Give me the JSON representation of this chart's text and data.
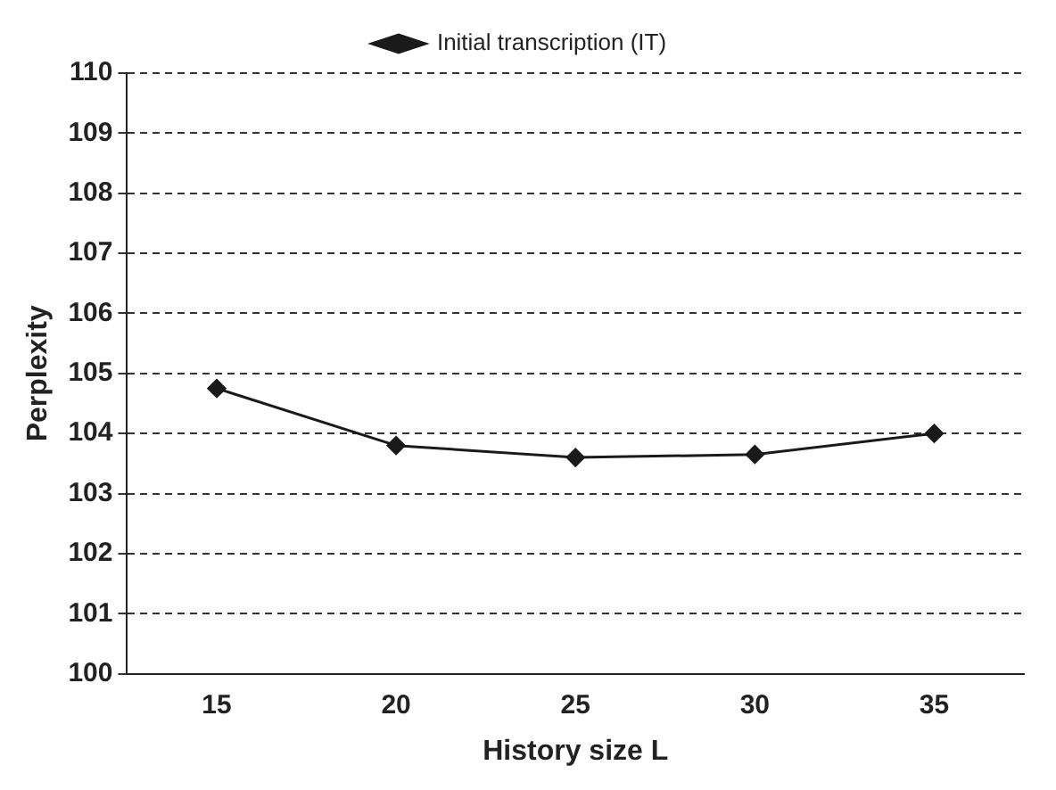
{
  "chart_data": {
    "type": "line",
    "xlabel": "History size L",
    "ylabel": "Perplexity",
    "categories": [
      "15",
      "20",
      "25",
      "30",
      "35"
    ],
    "series": [
      {
        "name": "Initial transcription (IT)",
        "color": "#1a1a1a",
        "values": [
          104.75,
          103.8,
          103.6,
          103.65,
          104.0
        ]
      }
    ],
    "ylim": [
      100,
      110
    ],
    "yticks": [
      100,
      101,
      102,
      103,
      104,
      105,
      106,
      107,
      108,
      109,
      110
    ],
    "grid": "y",
    "legend": "top",
    "marker": "diamond",
    "line_style": "solid"
  }
}
